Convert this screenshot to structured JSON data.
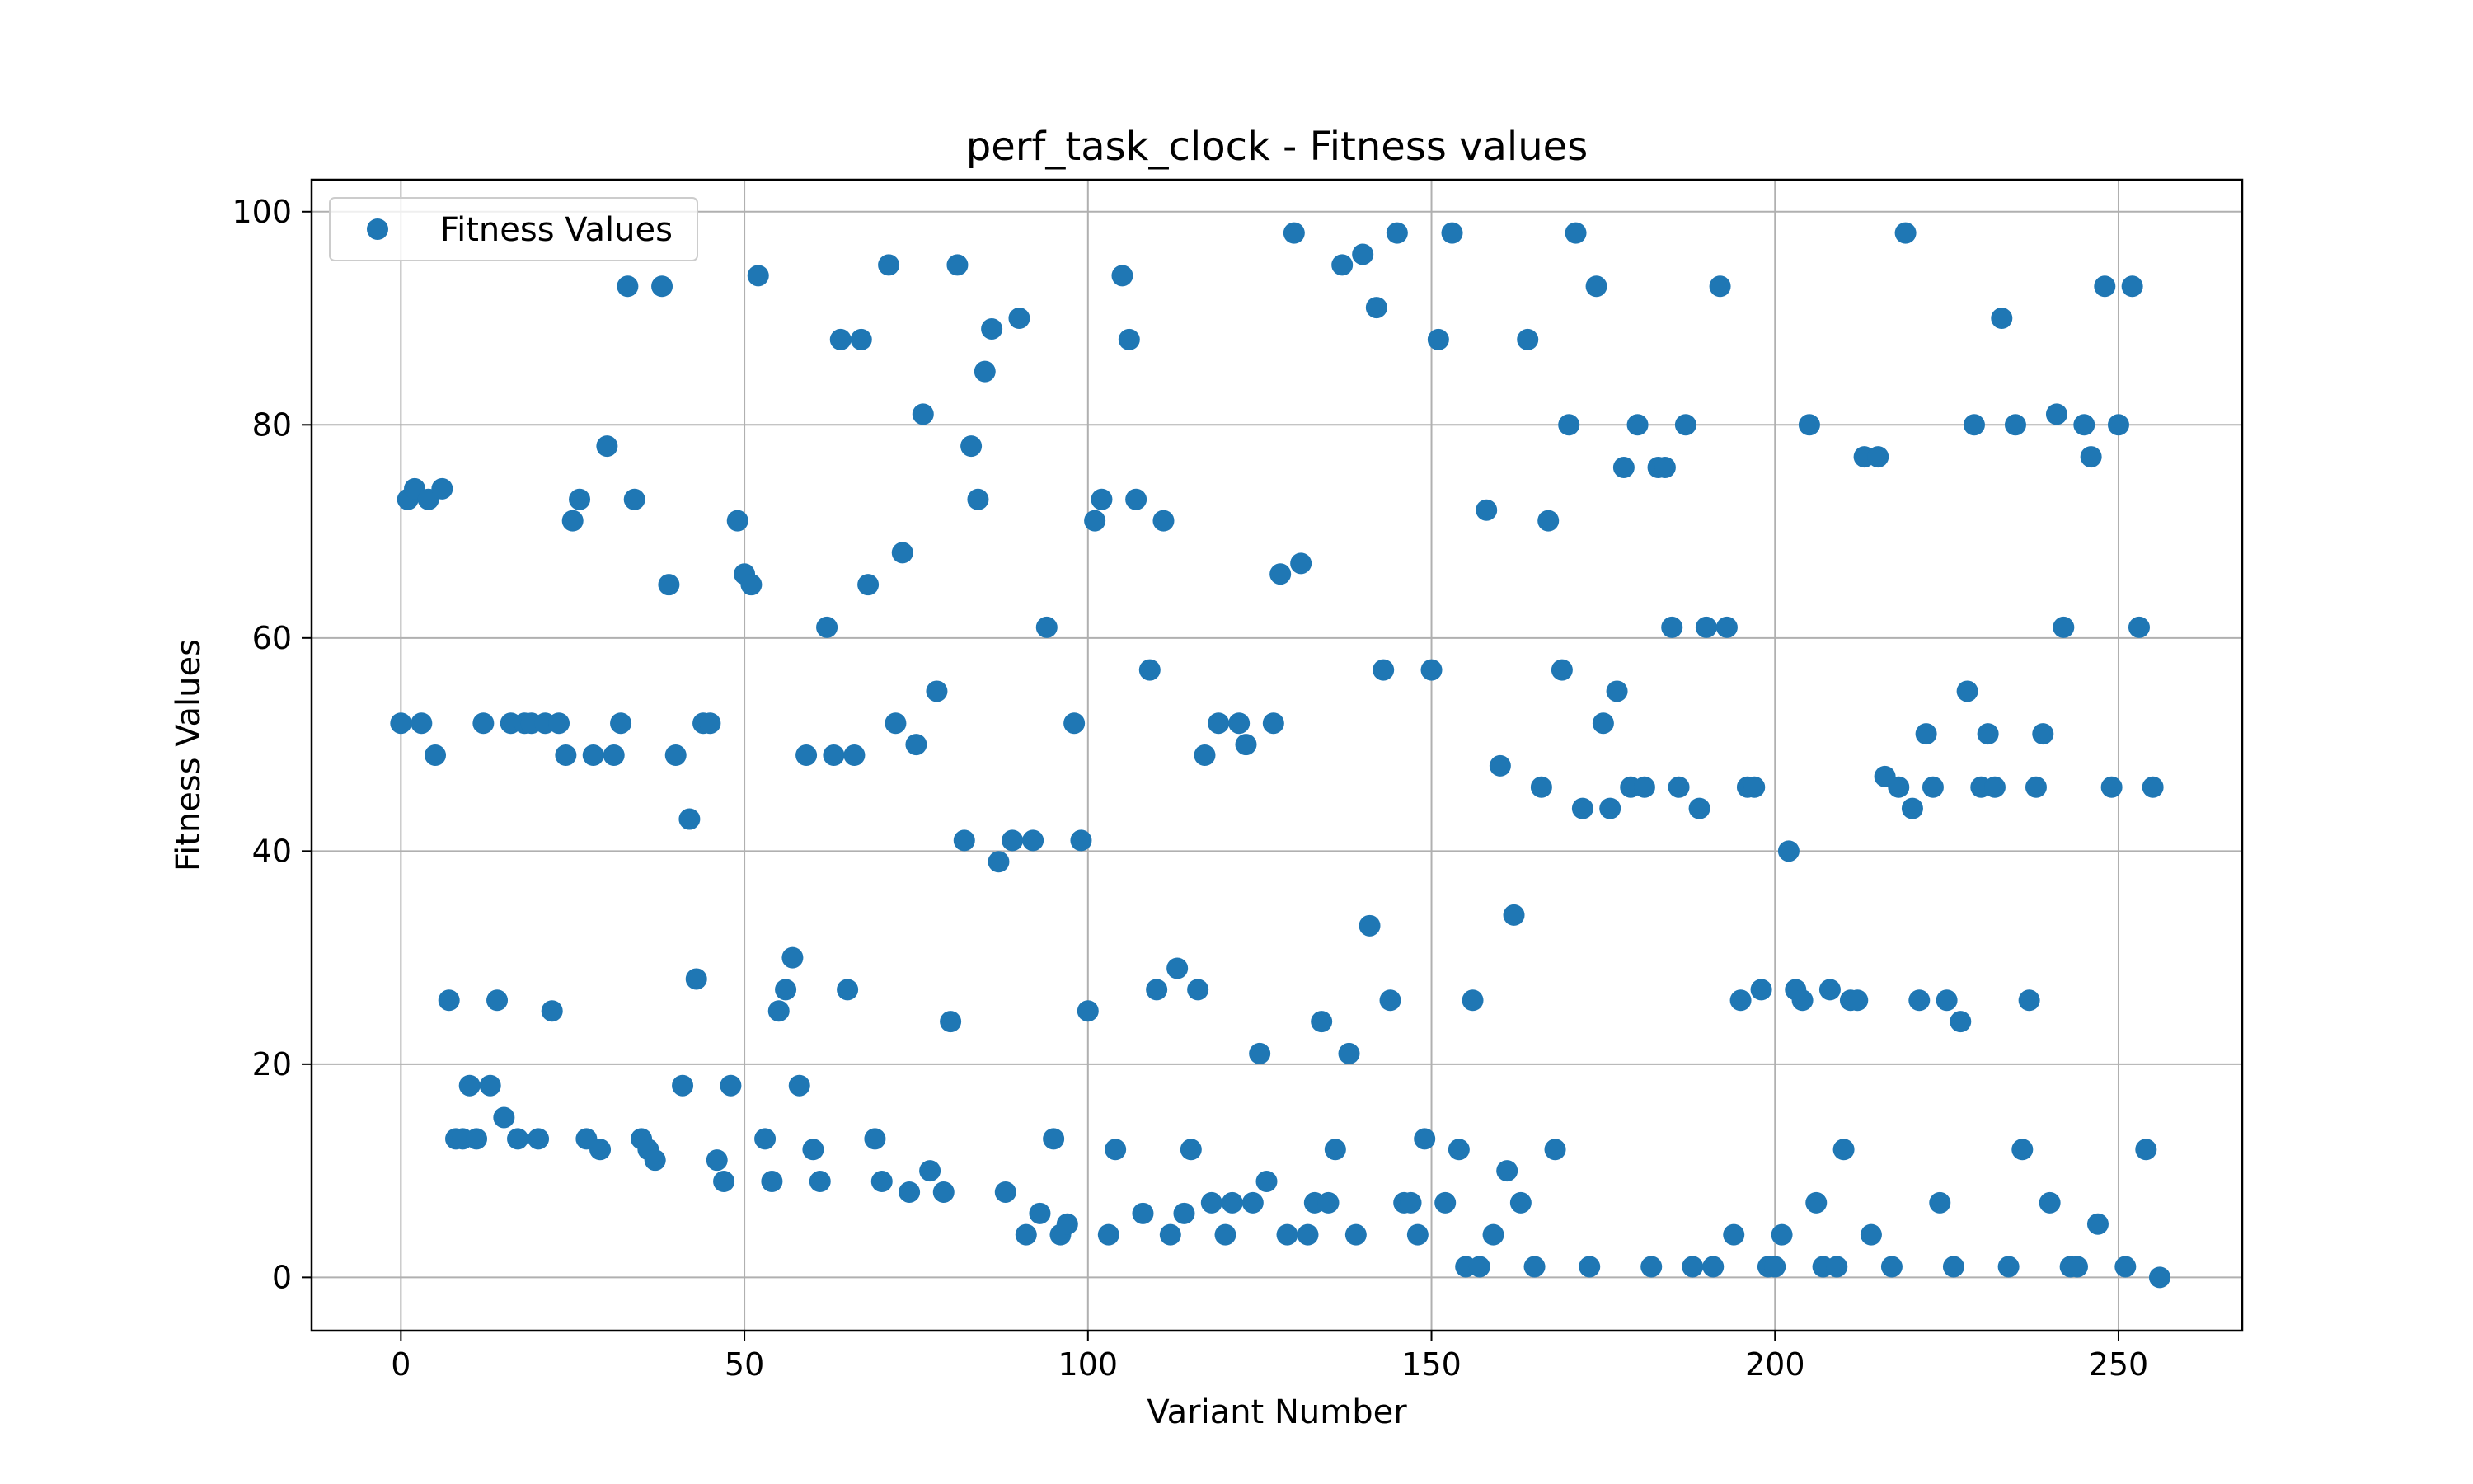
{
  "chart_data": {
    "type": "scatter",
    "title": "perf_task_clock - Fitness values",
    "xlabel": "Variant Number",
    "ylabel": "Fitness Values",
    "xlim": [
      -13,
      268
    ],
    "ylim": [
      -5,
      103
    ],
    "xticks": [
      0,
      50,
      100,
      150,
      200,
      250
    ],
    "yticks": [
      0,
      20,
      40,
      60,
      80,
      100
    ],
    "grid": true,
    "legend_position": "top-left",
    "marker_color": "#1f77b4",
    "series": [
      {
        "name": "Fitness Values",
        "x": [
          0,
          1,
          2,
          3,
          4,
          5,
          6,
          7,
          8,
          9,
          10,
          11,
          12,
          13,
          14,
          15,
          16,
          17,
          18,
          19,
          20,
          21,
          22,
          23,
          24,
          25,
          26,
          27,
          28,
          29,
          30,
          31,
          32,
          33,
          34,
          35,
          36,
          37,
          38,
          39,
          40,
          41,
          42,
          43,
          44,
          45,
          46,
          47,
          48,
          49,
          50,
          51,
          52,
          53,
          54,
          55,
          56,
          57,
          58,
          59,
          60,
          61,
          62,
          63,
          64,
          65,
          66,
          67,
          68,
          69,
          70,
          71,
          72,
          73,
          74,
          75,
          76,
          77,
          78,
          79,
          80,
          81,
          82,
          83,
          84,
          85,
          86,
          87,
          88,
          89,
          90,
          91,
          92,
          93,
          94,
          95,
          96,
          97,
          98,
          99,
          100,
          101,
          102,
          103,
          104,
          105,
          106,
          107,
          108,
          109,
          110,
          111,
          112,
          113,
          114,
          115,
          116,
          117,
          118,
          119,
          120,
          121,
          122,
          123,
          124,
          125,
          126,
          127,
          128,
          129,
          130,
          131,
          132,
          133,
          134,
          135,
          136,
          137,
          138,
          139,
          140,
          141,
          142,
          143,
          144,
          145,
          146,
          147,
          148,
          149,
          150,
          151,
          152,
          153,
          154,
          155,
          156,
          157,
          158,
          159,
          160,
          161,
          162,
          163,
          164,
          165,
          166,
          167,
          168,
          169,
          170,
          171,
          172,
          173,
          174,
          175,
          176,
          177,
          178,
          179,
          180,
          181,
          182,
          183,
          184,
          185,
          186,
          187,
          188,
          189,
          190,
          191,
          192,
          193,
          194,
          195,
          196,
          197,
          198,
          199,
          200,
          201,
          202,
          203,
          204,
          205,
          206,
          207,
          208,
          209,
          210,
          211,
          212,
          213,
          214,
          215,
          216,
          217,
          218,
          219,
          220,
          221,
          222,
          223,
          224,
          225,
          226,
          227,
          228,
          229,
          230,
          231,
          232,
          233,
          234,
          235,
          236,
          237,
          238,
          239,
          240,
          241,
          242,
          243,
          244,
          245,
          246,
          247,
          248,
          249,
          250,
          251,
          252,
          253,
          254,
          255,
          256
        ],
        "y": [
          52,
          73,
          74,
          52,
          73,
          49,
          74,
          26,
          13,
          13,
          18,
          13,
          52,
          18,
          26,
          15,
          52,
          13,
          52,
          52,
          13,
          52,
          25,
          52,
          49,
          71,
          73,
          13,
          49,
          12,
          78,
          49,
          52,
          93,
          73,
          13,
          12,
          11,
          93,
          65,
          49,
          18,
          43,
          28,
          52,
          52,
          11,
          9,
          18,
          71,
          66,
          65,
          94,
          13,
          9,
          25,
          27,
          30,
          18,
          49,
          12,
          9,
          61,
          49,
          88,
          27,
          49,
          88,
          65,
          13,
          9,
          95,
          52,
          68,
          8,
          50,
          81,
          10,
          55,
          8,
          24,
          95,
          41,
          78,
          73,
          85,
          89,
          39,
          8,
          41,
          90,
          4,
          41,
          6,
          61,
          13,
          4,
          5,
          52,
          41,
          25,
          71,
          73,
          4,
          12,
          94,
          88,
          73,
          6,
          57,
          27,
          71,
          4,
          29,
          6,
          12,
          27,
          49,
          7,
          52,
          4,
          7,
          52,
          50,
          7,
          21,
          9,
          52,
          66,
          4,
          98,
          67,
          4,
          7,
          24,
          7,
          12,
          95,
          21,
          4,
          96,
          33,
          91,
          57,
          26,
          98,
          7,
          7,
          4,
          13,
          57,
          88,
          7,
          98,
          12,
          1,
          26,
          1,
          72,
          4,
          48,
          10,
          34,
          7,
          88,
          1,
          46,
          71,
          12,
          57,
          80,
          98,
          44,
          1,
          93,
          52,
          44,
          55,
          76,
          46,
          80,
          46,
          1,
          76,
          76,
          61,
          46,
          80,
          1,
          44,
          61,
          1,
          93,
          61,
          4,
          26,
          46,
          46,
          27,
          1,
          1,
          4,
          40,
          27,
          26,
          80,
          7,
          1,
          27,
          1,
          12,
          26,
          26,
          77,
          4,
          77,
          47,
          1,
          46,
          98,
          44,
          26,
          51,
          46,
          7,
          26,
          1,
          24,
          55,
          80,
          46,
          51,
          46,
          90,
          1,
          80,
          12,
          26,
          46,
          51,
          7,
          81,
          61,
          1,
          1,
          80,
          77,
          5,
          93,
          46,
          80,
          1,
          93,
          61,
          12,
          46,
          0
        ]
      }
    ]
  }
}
